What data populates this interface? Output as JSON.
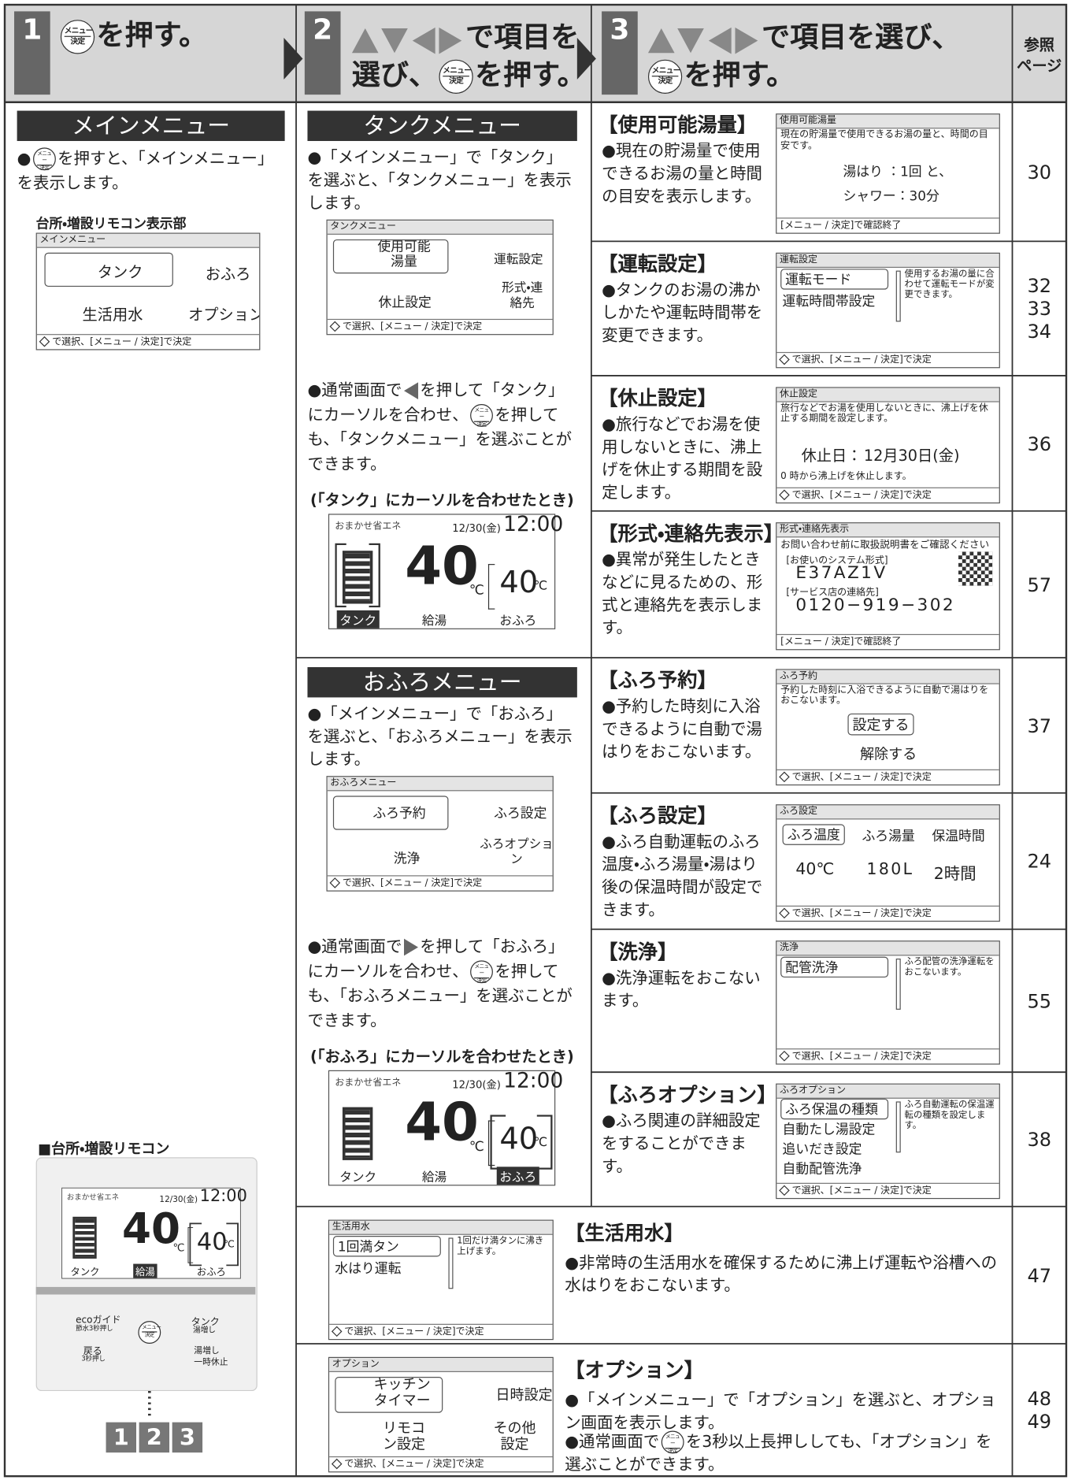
{
  "header": {
    "step1": {
      "number": "1",
      "text": "を押す。"
    },
    "step2": {
      "number": "2",
      "line1": "で項目を",
      "line2a": "選び、",
      "line2b": "を押す。"
    },
    "step3": {
      "number": "3",
      "line1": "で項目を選び、",
      "line2": "を押す。"
    },
    "reference": {
      "line1": "参照",
      "line2": "ページ"
    },
    "button_icon": {
      "top": "メニュー",
      "bottom": "決定"
    }
  },
  "screen_footer": {
    "select": "で選択、[メニュー / 決定]で決定",
    "confirm": "[メニュー / 決定]で確認終了"
  },
  "normal_screen": {
    "mode": "おまかせ省エネ",
    "date": "12/30(金)",
    "time": "12:00",
    "hot_water_temp": "40",
    "bath_temp": "40",
    "unit": "℃",
    "labels": [
      "タンク",
      "給湯",
      "おふろ"
    ]
  },
  "main_menu": {
    "title": "メインメニュー",
    "description_a": "●",
    "description_b": "を押すと、「メインメニュー」を表示します。",
    "screen_caption": "台所・増設リモコン表示部",
    "screen": {
      "title": "メインメニュー",
      "items": [
        "タンク",
        "おふろ",
        "生活用水",
        "オプション"
      ]
    },
    "remote_caption": "■台所・増設リモコン",
    "remote": {
      "buttons": [
        "ecoガイド",
        "節水3秒押し",
        "戻る",
        "3秒押し",
        "タンク",
        "湯増し",
        "湯増し",
        "一時休止"
      ]
    },
    "step_badges": [
      "1",
      "2",
      "3"
    ]
  },
  "tank_menu": {
    "title": "タンクメニュー",
    "description": "●「メインメニュー」で「タンク」を選ぶと、「タンクメニュー」を表示します。",
    "screen": {
      "title": "タンクメニュー",
      "items": [
        "使用可能湯量",
        "運転設定",
        "休止設定",
        "形式・連絡先"
      ]
    },
    "note_a": "●通常画面で",
    "note_b": "を押して「タンク」にカーソルを合わせ、",
    "note_c": "を押しても、「タンクメニュー」を選ぶことができます。",
    "cursor_caption": "(「タンク」にカーソルを合わせたとき)"
  },
  "bath_menu": {
    "title": "おふろメニュー",
    "description": "●「メインメニュー」で「おふろ」を選ぶと、「おふろメニュー」を表示します。",
    "screen": {
      "title": "おふろメニュー",
      "items": [
        "ふろ予約",
        "ふろ設定",
        "洗浄",
        "ふろオプション"
      ]
    },
    "note_a": "●通常画面で",
    "note_b": "を押して「おふろ」にカーソルを合わせ、",
    "note_c": "を押しても、「おふろメニュー」を選ぶことができます。",
    "cursor_caption": "(「おふろ」にカーソルを合わせたとき)"
  },
  "items": [
    {
      "title": "【使用可能湯量】",
      "description": "●現在の貯湯量で使用できるお湯の量と時間の目安を表示します。",
      "pages": [
        30
      ],
      "screen": {
        "title": "使用可能湯量",
        "text": "現在の貯湯量で使用できるお湯の量と、時間の目安です。",
        "lines": [
          "湯はり ：1回 と、",
          "シャワー：30分"
        ]
      }
    },
    {
      "title": "【運転設定】",
      "description": "●タンクのお湯の沸かしかたや運転時間帯を変更できます。",
      "pages": [
        32,
        33,
        34
      ],
      "screen": {
        "title": "運転設定",
        "entries": [
          "運転モード",
          "運転時間帯設定"
        ],
        "side": "使用するお湯の量に合わせて運転モードが変更できます。"
      }
    },
    {
      "title": "【休止設定】",
      "description": "●旅行などでお湯を使用しないときに、沸上げを休止する期間を設定します。",
      "pages": [
        36
      ],
      "screen": {
        "title": "休止設定",
        "text": "旅行などでお湯を使用しないときに、沸上げを休止する期間を設定します。",
        "lines": [
          "休止日：",
          "12月30日(金)"
        ],
        "note": "0 時から沸上げを休止します。"
      }
    },
    {
      "title": "【形式・連絡先表示】",
      "description": "●異常が発生したときなどに見るための、形式と連絡先を表示します。",
      "pages": [
        57
      ],
      "screen": {
        "title": "形式・連絡先表示",
        "text": "お問い合わせ前に取扱説明書をご確認ください",
        "lines": [
          "[お使いのシステム形式]",
          "E37AZ1V",
          "[サービス店の連絡先]",
          "0120−919−302"
        ]
      }
    },
    {
      "title": "【ふろ予約】",
      "description": "●予約した時刻に入浴できるように自動で湯はりをおこないます。",
      "pages": [
        37
      ],
      "screen": {
        "title": "ふろ予約",
        "text": "予約した時刻に入浴できるように自動で湯はりをおこないます。",
        "entries": [
          "設定する",
          "解除する"
        ]
      }
    },
    {
      "title": "【ふろ設定】",
      "description": "●ふろ自動運転のふろ温度・ふろ湯量・湯はり後の保温時間が設定できます。",
      "pages": [
        24
      ],
      "screen": {
        "title": "ふろ設定",
        "entries": [
          "ふろ温度",
          "ふろ湯量",
          "保温時間"
        ],
        "values": [
          "40℃",
          "180L",
          "2時間"
        ]
      }
    },
    {
      "title": "【洗浄】",
      "description": "●洗浄運転をおこないます。",
      "pages": [
        55
      ],
      "screen": {
        "title": "洗浄",
        "entries": [
          "配管洗浄"
        ],
        "side": "ふろ配管の洗浄運転をおこないます。"
      }
    },
    {
      "title": "【ふろオプション】",
      "description": "●ふろ関連の詳細設定をすることができます。",
      "pages": [
        38
      ],
      "screen": {
        "title": "ふろオプション",
        "entries": [
          "ふろ保温の種類",
          "自動たし湯設定",
          "追いだき設定",
          "自動配管洗浄"
        ],
        "side": "ふろ自動運転の保温運転の種類を設定します。"
      }
    }
  ],
  "bottom": [
    {
      "title": "【生活用水】",
      "description": "●非常時の生活用水を確保するために沸上げ運転や浴槽への水はりをおこないます。",
      "pages": [
        47
      ],
      "screen": {
        "title": "生活用水",
        "entries": [
          "1回満タン",
          "水はり運転"
        ],
        "side": "1回だけ満タンに沸き上げます。"
      }
    },
    {
      "title": "【オプション】",
      "description": "●「メインメニュー」で「オプション」を選ぶと、オプション画面を表示します。",
      "description2a": "●通常画面で",
      "description2b": "を3秒以上長押ししても、「オプション」を選ぶことができます。",
      "pages": [
        48,
        49
      ],
      "screen": {
        "title": "オプション",
        "entries": [
          "キッチンタイマー",
          "日時設定",
          "リモコン設定",
          "その他設定"
        ]
      }
    }
  ]
}
